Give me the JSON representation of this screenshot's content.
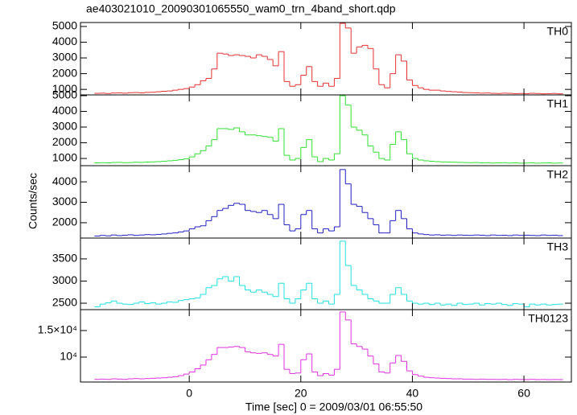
{
  "chart_data": [
    {
      "type": "line",
      "title": "ae403021010_20090301065550_wam0_trn_4band_short.qdp",
      "x": [
        -16.5,
        -15.5,
        -14.5,
        -13.5,
        -12.5,
        -11.5,
        -10.5,
        -9.5,
        -8.5,
        -7.5,
        -6.5,
        -5.5,
        -4.5,
        -3.5,
        -2.5,
        -1.5,
        -0.5,
        0.5,
        1.5,
        2.5,
        3.5,
        4.5,
        5.5,
        6.5,
        7.5,
        8.5,
        9.5,
        10.5,
        11.5,
        12.5,
        13.5,
        14.5,
        15.5,
        16.5,
        17.5,
        18.5,
        19.5,
        20.5,
        21.5,
        22.5,
        23.5,
        24.5,
        25.5,
        26.5,
        27.5,
        28.5,
        29.5,
        30.5,
        31.5,
        32.5,
        33.5,
        34.5,
        35.5,
        36.5,
        37.5,
        38.5,
        39.5,
        40.5,
        41.5,
        42.5,
        43.5,
        44.5,
        45.5,
        46.5,
        47.5,
        48.5,
        49.5,
        50.5,
        51.5,
        52.5,
        53.5,
        54.5,
        55.5,
        56.5,
        57.5,
        58.5,
        59.5,
        60.5,
        61.5,
        62.5,
        63.5,
        64.5,
        65.5,
        66.5
      ],
      "xlim": [
        -19.5,
        68.5
      ],
      "ylim": [
        650,
        5250
      ],
      "yticks": [
        1000,
        2000,
        3000,
        4000,
        5000
      ],
      "series": [
        {
          "name": "TH0",
          "color": "#e83030",
          "values": [
            750,
            760,
            740,
            770,
            780,
            760,
            790,
            800,
            780,
            810,
            820,
            850,
            880,
            900,
            950,
            1000,
            1050,
            1150,
            1300,
            1550,
            1700,
            2300,
            3300,
            3250,
            3150,
            3200,
            3150,
            3100,
            3000,
            3200,
            3100,
            2900,
            2500,
            3400,
            1500,
            1200,
            1300,
            1900,
            2450,
            1500,
            1200,
            1400,
            1200,
            1700,
            5200,
            4900,
            3300,
            3700,
            3800,
            3600,
            2300,
            1300,
            1100,
            2000,
            3200,
            2800,
            1600,
            1250,
            1100,
            1000,
            950,
            950,
            900,
            870,
            850,
            830,
            800,
            790,
            780,
            760,
            770,
            750,
            740,
            760,
            750,
            730,
            740,
            730,
            750,
            740,
            720,
            730,
            740,
            720
          ]
        }
      ]
    },
    {
      "type": "line",
      "x": [
        -16.5,
        -15.5,
        -14.5,
        -13.5,
        -12.5,
        -11.5,
        -10.5,
        -9.5,
        -8.5,
        -7.5,
        -6.5,
        -5.5,
        -4.5,
        -3.5,
        -2.5,
        -1.5,
        -0.5,
        0.5,
        1.5,
        2.5,
        3.5,
        4.5,
        5.5,
        6.5,
        7.5,
        8.5,
        9.5,
        10.5,
        11.5,
        12.5,
        13.5,
        14.5,
        15.5,
        16.5,
        17.5,
        18.5,
        19.5,
        20.5,
        21.5,
        22.5,
        23.5,
        24.5,
        25.5,
        26.5,
        27.5,
        28.5,
        29.5,
        30.5,
        31.5,
        32.5,
        33.5,
        34.5,
        35.5,
        36.5,
        37.5,
        38.5,
        39.5,
        40.5,
        41.5,
        42.5,
        43.5,
        44.5,
        45.5,
        46.5,
        47.5,
        48.5,
        49.5,
        50.5,
        51.5,
        52.5,
        53.5,
        54.5,
        55.5,
        56.5,
        57.5,
        58.5,
        59.5,
        60.5,
        61.5,
        62.5,
        63.5,
        64.5,
        65.5,
        66.5
      ],
      "xlim": [
        -19.5,
        68.5
      ],
      "ylim": [
        540,
        5050
      ],
      "yticks": [
        1000,
        2000,
        3000,
        4000,
        5000
      ],
      "series": [
        {
          "name": "TH1",
          "color": "#30e030",
          "values": [
            720,
            730,
            720,
            740,
            750,
            730,
            740,
            760,
            750,
            770,
            780,
            800,
            820,
            850,
            880,
            920,
            980,
            1100,
            1300,
            1500,
            1800,
            2200,
            2900,
            2900,
            2850,
            2950,
            2700,
            2500,
            2500,
            2450,
            2400,
            2350,
            2100,
            2900,
            1200,
            900,
            1000,
            1700,
            2200,
            1100,
            800,
            1000,
            900,
            1300,
            5000,
            4400,
            3000,
            2800,
            2500,
            1800,
            1400,
            1000,
            900,
            1900,
            2700,
            2200,
            1300,
            1000,
            900,
            850,
            820,
            800,
            780,
            770,
            760,
            750,
            740,
            730,
            740,
            720,
            730,
            710,
            720,
            730,
            710,
            720,
            700,
            710,
            720,
            700,
            710,
            720,
            700,
            710
          ]
        }
      ]
    },
    {
      "type": "line",
      "ylabel": "Counts/sec",
      "x": [
        -16.5,
        -15.5,
        -14.5,
        -13.5,
        -12.5,
        -11.5,
        -10.5,
        -9.5,
        -8.5,
        -7.5,
        -6.5,
        -5.5,
        -4.5,
        -3.5,
        -2.5,
        -1.5,
        -0.5,
        0.5,
        1.5,
        2.5,
        3.5,
        4.5,
        5.5,
        6.5,
        7.5,
        8.5,
        9.5,
        10.5,
        11.5,
        12.5,
        13.5,
        14.5,
        15.5,
        16.5,
        17.5,
        18.5,
        19.5,
        20.5,
        21.5,
        22.5,
        23.5,
        24.5,
        25.5,
        26.5,
        27.5,
        28.5,
        29.5,
        30.5,
        31.5,
        32.5,
        33.5,
        34.5,
        35.5,
        36.5,
        37.5,
        38.5,
        39.5,
        40.5,
        41.5,
        42.5,
        43.5,
        44.5,
        45.5,
        46.5,
        47.5,
        48.5,
        49.5,
        50.5,
        51.5,
        52.5,
        53.5,
        54.5,
        55.5,
        56.5,
        57.5,
        58.5,
        59.5,
        60.5,
        61.5,
        62.5,
        63.5,
        64.5,
        65.5,
        66.5
      ],
      "xlim": [
        -19.5,
        68.5
      ],
      "ylim": [
        1250,
        4790
      ],
      "yticks": [
        2000,
        3000,
        4000
      ],
      "series": [
        {
          "name": "TH2",
          "color": "#2020c0",
          "values": [
            1350,
            1380,
            1360,
            1400,
            1370,
            1390,
            1410,
            1380,
            1400,
            1420,
            1410,
            1430,
            1450,
            1480,
            1500,
            1550,
            1600,
            1700,
            1800,
            1850,
            2100,
            2300,
            2600,
            2700,
            2850,
            2950,
            2900,
            2600,
            2550,
            2500,
            2600,
            2400,
            2200,
            2900,
            1900,
            1600,
            1700,
            2400,
            2600,
            1700,
            1500,
            1700,
            1600,
            1800,
            4600,
            3900,
            2900,
            2800,
            2500,
            2200,
            1900,
            1500,
            1500,
            2100,
            2600,
            2200,
            1700,
            1500,
            1450,
            1420,
            1400,
            1410,
            1390,
            1400,
            1380,
            1400,
            1390,
            1380,
            1400,
            1390,
            1370,
            1400,
            1380,
            1390,
            1370,
            1400,
            1380,
            1390,
            1380,
            1370,
            1400,
            1380,
            1390,
            1370
          ]
        }
      ]
    },
    {
      "type": "line",
      "x": [
        -16.5,
        -15.5,
        -14.5,
        -13.5,
        -12.5,
        -11.5,
        -10.5,
        -9.5,
        -8.5,
        -7.5,
        -6.5,
        -5.5,
        -4.5,
        -3.5,
        -2.5,
        -1.5,
        -0.5,
        0.5,
        1.5,
        2.5,
        3.5,
        4.5,
        5.5,
        6.5,
        7.5,
        8.5,
        9.5,
        10.5,
        11.5,
        12.5,
        13.5,
        14.5,
        15.5,
        16.5,
        17.5,
        18.5,
        19.5,
        20.5,
        21.5,
        22.5,
        23.5,
        24.5,
        25.5,
        26.5,
        27.5,
        28.5,
        29.5,
        30.5,
        31.5,
        32.5,
        33.5,
        34.5,
        35.5,
        36.5,
        37.5,
        38.5,
        39.5,
        40.5,
        41.5,
        42.5,
        43.5,
        44.5,
        45.5,
        46.5,
        47.5,
        48.5,
        49.5,
        50.5,
        51.5,
        52.5,
        53.5,
        54.5,
        55.5,
        56.5,
        57.5,
        58.5,
        59.5,
        60.5,
        61.5,
        62.5,
        63.5,
        64.5,
        65.5,
        66.5
      ],
      "xlim": [
        -19.5,
        68.5
      ],
      "ylim": [
        2355,
        3970
      ],
      "yticks": [
        2500,
        3000,
        3500
      ],
      "series": [
        {
          "name": "TH3",
          "color": "#20e0e0",
          "values": [
            2420,
            2480,
            2510,
            2550,
            2500,
            2480,
            2470,
            2500,
            2530,
            2490,
            2510,
            2480,
            2500,
            2530,
            2520,
            2560,
            2580,
            2600,
            2620,
            2700,
            2850,
            2900,
            3050,
            3100,
            3000,
            3100,
            2900,
            2800,
            2750,
            2800,
            2750,
            2700,
            2650,
            2950,
            2600,
            2500,
            2600,
            2800,
            2950,
            2600,
            2500,
            2550,
            2480,
            2700,
            3900,
            3350,
            2900,
            2800,
            2700,
            2600,
            2550,
            2500,
            2500,
            2700,
            2850,
            2700,
            2550,
            2500,
            2480,
            2500,
            2470,
            2500,
            2460,
            2480,
            2450,
            2500,
            2470,
            2480,
            2500,
            2460,
            2490,
            2480,
            2500,
            2470,
            2450,
            2490,
            2480,
            2420,
            2480,
            2460,
            2480,
            2460,
            2470,
            2480
          ]
        }
      ]
    },
    {
      "type": "line",
      "xlabel": "Time [sec] 0 = 2009/03/01 06:55:50",
      "xticks": [
        0,
        20,
        40,
        60
      ],
      "x": [
        -16.5,
        -15.5,
        -14.5,
        -13.5,
        -12.5,
        -11.5,
        -10.5,
        -9.5,
        -8.5,
        -7.5,
        -6.5,
        -5.5,
        -4.5,
        -3.5,
        -2.5,
        -1.5,
        -0.5,
        0.5,
        1.5,
        2.5,
        3.5,
        4.5,
        5.5,
        6.5,
        7.5,
        8.5,
        9.5,
        10.5,
        11.5,
        12.5,
        13.5,
        14.5,
        15.5,
        16.5,
        17.5,
        18.5,
        19.5,
        20.5,
        21.5,
        22.5,
        23.5,
        24.5,
        25.5,
        26.5,
        27.5,
        28.5,
        29.5,
        30.5,
        31.5,
        32.5,
        33.5,
        34.5,
        35.5,
        36.5,
        37.5,
        38.5,
        39.5,
        40.5,
        41.5,
        42.5,
        43.5,
        44.5,
        45.5,
        46.5,
        47.5,
        48.5,
        49.5,
        50.5,
        51.5,
        52.5,
        53.5,
        54.5,
        55.5,
        56.5,
        57.5,
        58.5,
        59.5,
        60.5,
        61.5,
        62.5,
        63.5,
        64.5,
        65.5,
        66.5
      ],
      "xlim": [
        -19.5,
        68.5
      ],
      "ylim": [
        5300,
        18940
      ],
      "yticks": [
        {
          "value": 10000,
          "label": "10⁴"
        },
        {
          "value": 15000,
          "label": "1.5×10⁴"
        }
      ],
      "series": [
        {
          "name": "TH0123",
          "color": "#e030e0",
          "values": [
            5800,
            5850,
            5800,
            5900,
            5850,
            5800,
            5900,
            5950,
            5900,
            5950,
            6000,
            6050,
            6100,
            6200,
            6300,
            6500,
            6800,
            7200,
            7800,
            8500,
            9500,
            10500,
            11800,
            11800,
            11900,
            12000,
            11800,
            11000,
            10800,
            10700,
            10800,
            10500,
            10200,
            12400,
            7700,
            6900,
            7000,
            9500,
            10600,
            7200,
            6500,
            6900,
            6600,
            7700,
            18500,
            17000,
            12500,
            12000,
            11500,
            10200,
            8700,
            7200,
            7000,
            8900,
            10300,
            9200,
            7400,
            6700,
            6400,
            6200,
            6100,
            6050,
            6000,
            5950,
            5900,
            5900,
            5850,
            5850,
            5800,
            5850,
            5800,
            5800,
            5780,
            5800,
            5750,
            5800,
            5780,
            5770,
            5800,
            5760,
            5780,
            5750,
            5770,
            5760
          ]
        }
      ]
    }
  ]
}
